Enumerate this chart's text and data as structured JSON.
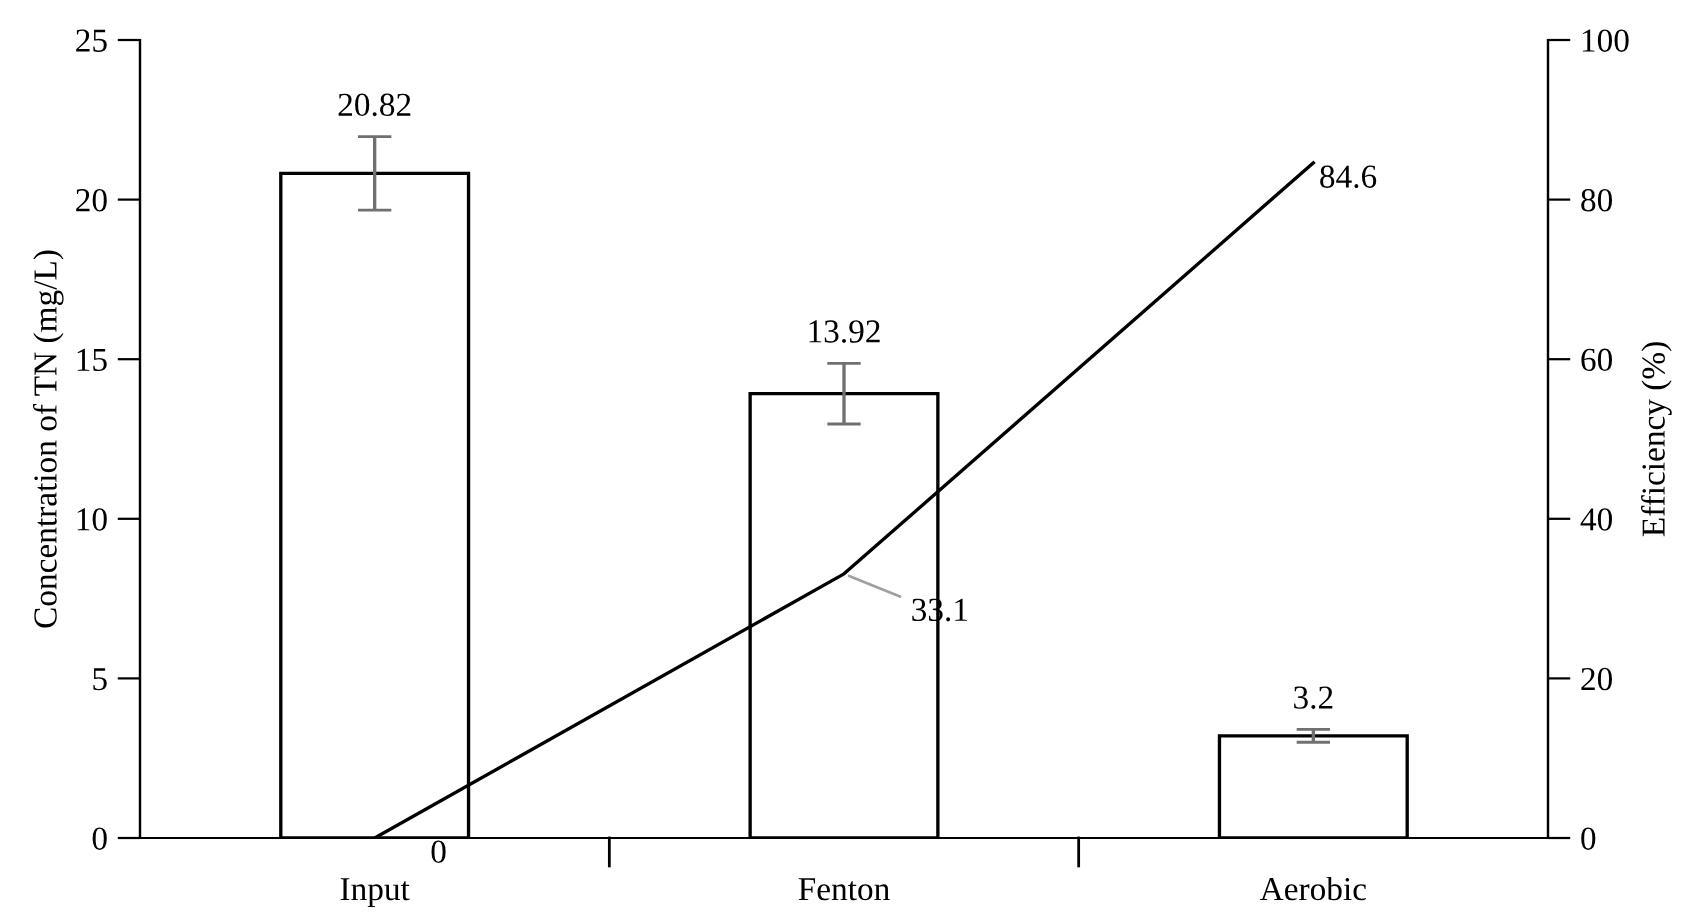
{
  "chart_data": {
    "type": "bar",
    "categories": [
      "Input",
      "Fenton",
      "Aerobic"
    ],
    "ylabel": "Concentration of TN (mg/L)",
    "y2label": "Efficiency (%)",
    "ylim": [
      0,
      25
    ],
    "yticks": [
      0,
      5,
      10,
      15,
      20,
      25
    ],
    "y2lim": [
      0,
      100
    ],
    "y2ticks": [
      0,
      20,
      40,
      60,
      80,
      100
    ],
    "data_labels": true,
    "grid": false,
    "legend": false,
    "series": [
      {
        "color": "#ffffff",
        "values": [
          20.82,
          13.92,
          3.2
        ],
        "errors": [
          1.15,
          0.95,
          0.2
        ]
      },
      {
        "type": "line",
        "axis": "y2",
        "color": "#000000",
        "values": [
          0,
          33.1,
          84.6
        ]
      }
    ]
  }
}
